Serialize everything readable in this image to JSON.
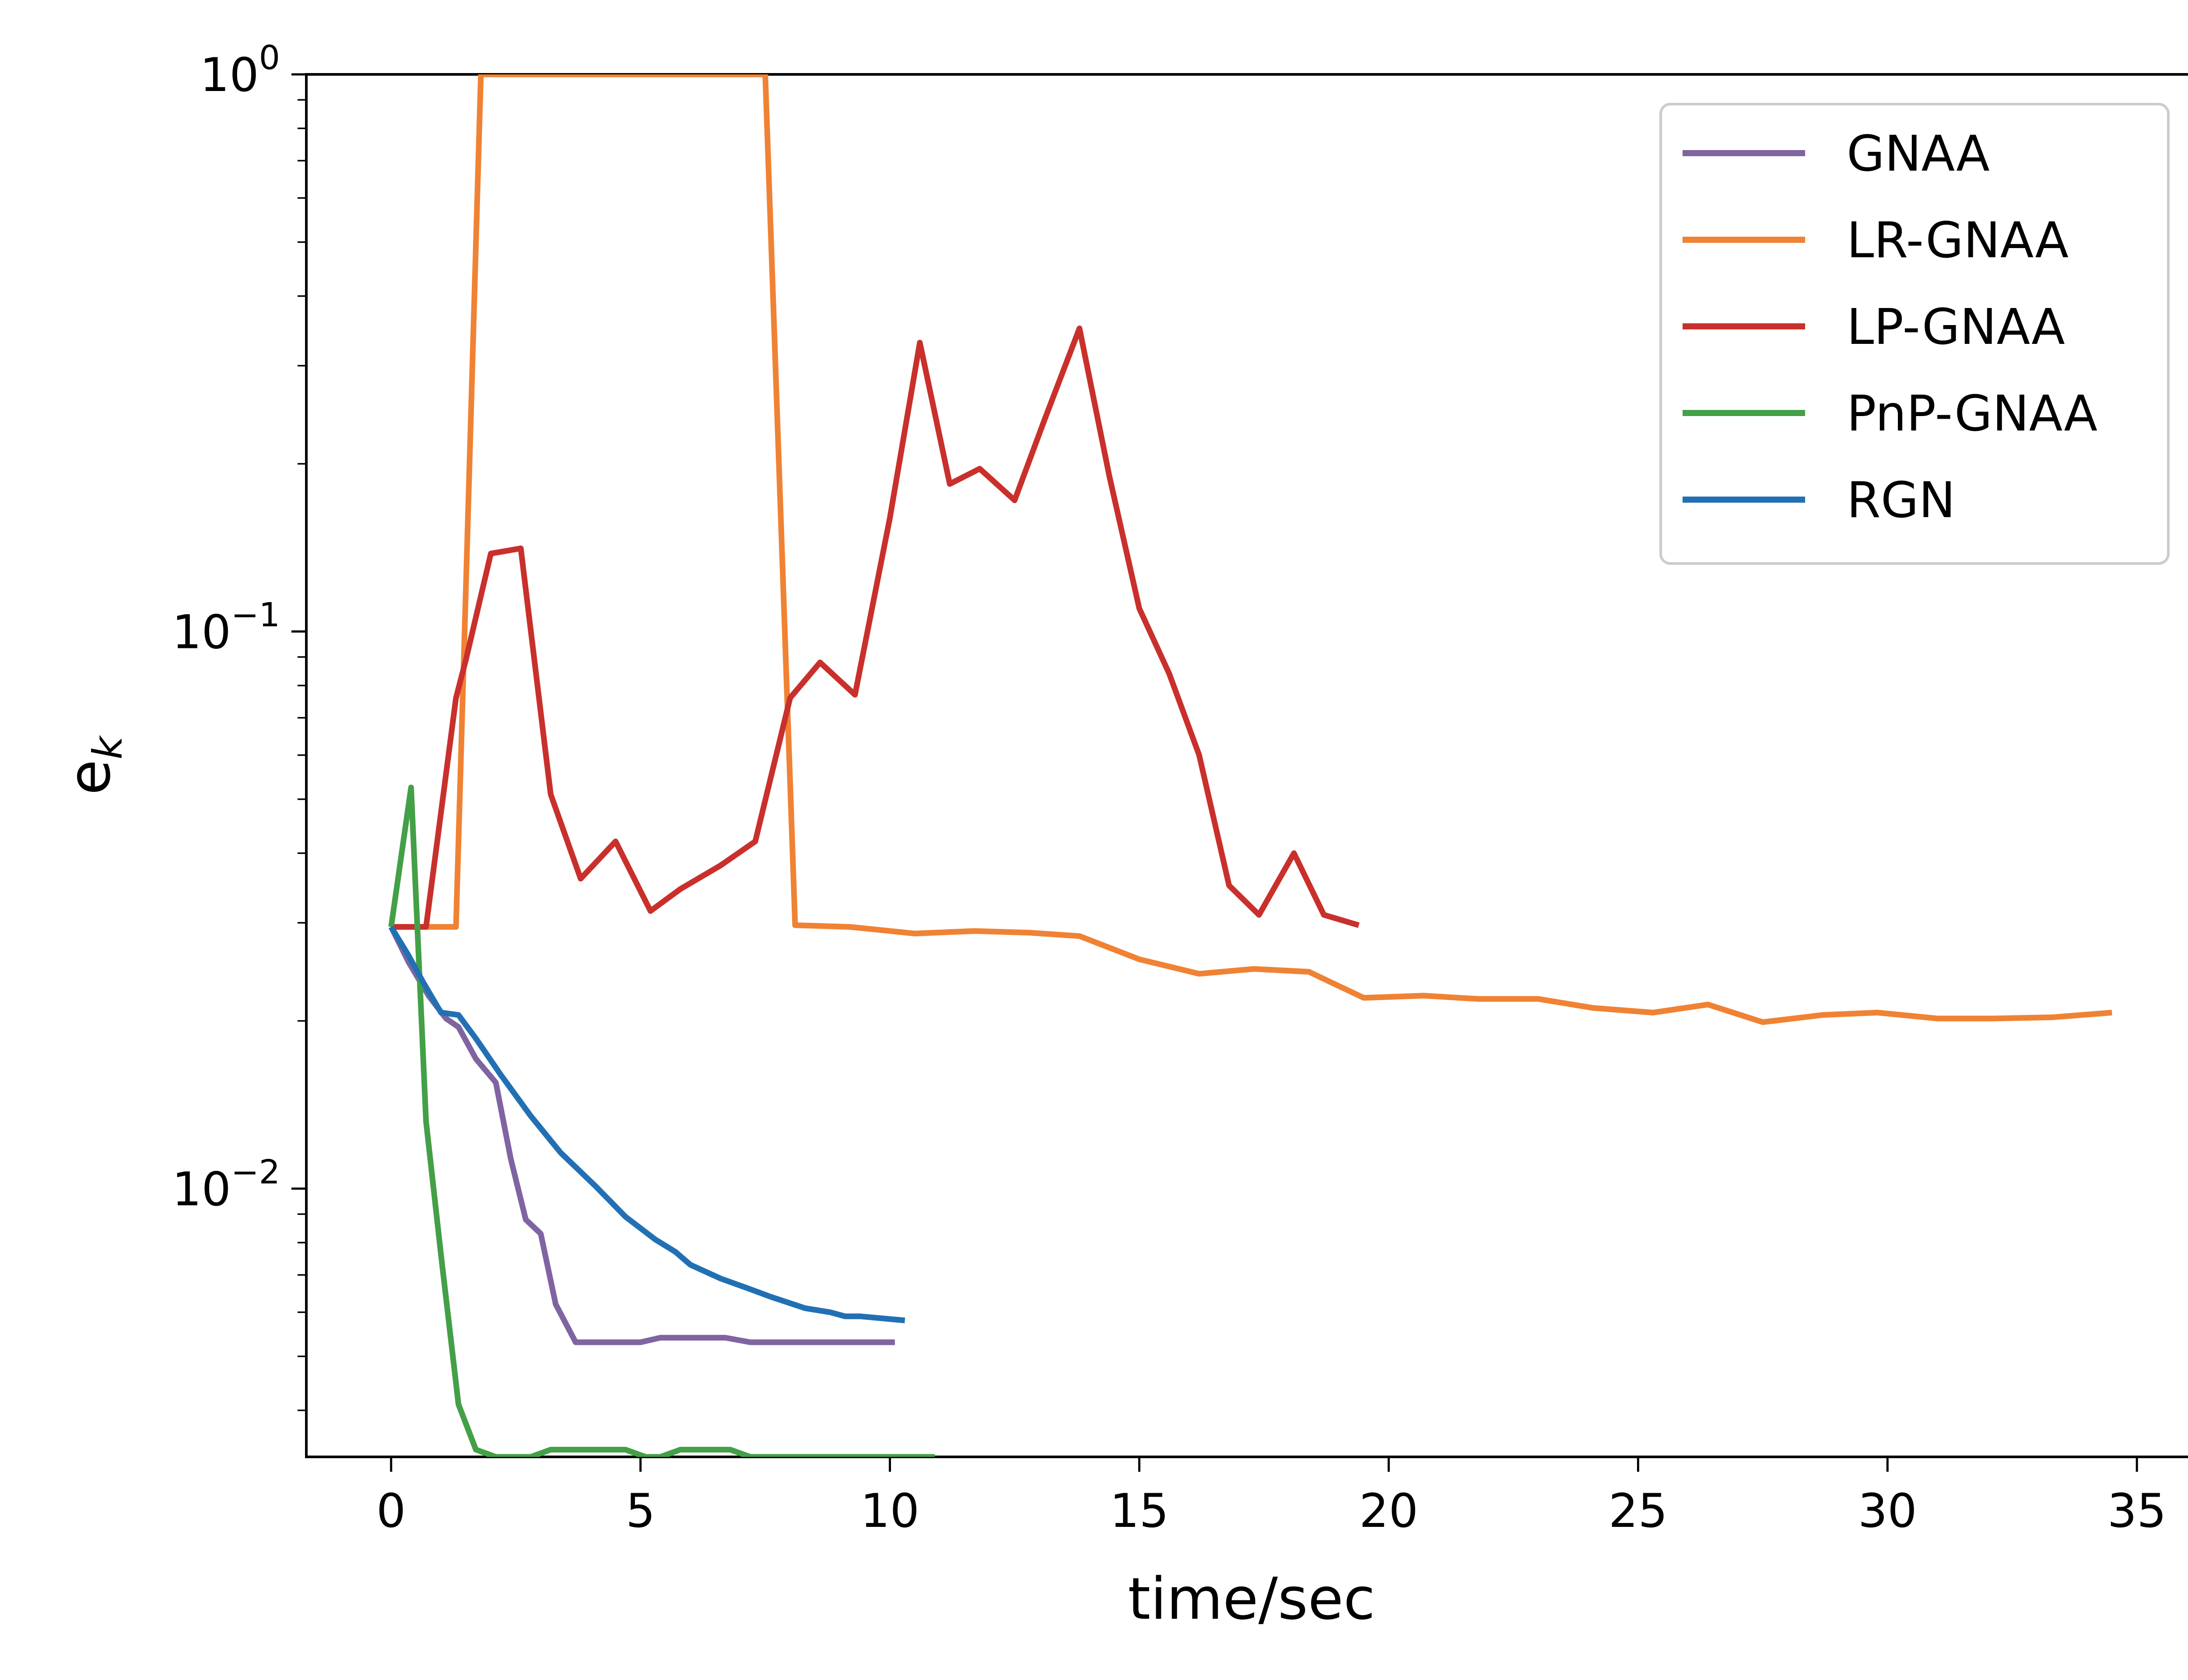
{
  "chart_data": {
    "type": "line",
    "title": "",
    "xlabel": "time/sec",
    "ylabel": "e_k",
    "ylabel_main": "e",
    "ylabel_sub": "k",
    "xlim": [
      -1.7,
      36.2
    ],
    "ylim": [
      0.0033,
      1.0
    ],
    "yscale": "log",
    "legend_position": "top-right",
    "x_ticks": [
      0,
      5,
      10,
      15,
      20,
      25,
      30,
      35
    ],
    "x_tick_labels": [
      "0",
      "5",
      "10",
      "15",
      "20",
      "25",
      "30",
      "35"
    ],
    "y_ticks": [
      {
        "value": 0.01,
        "base": "10",
        "exp": "−2"
      },
      {
        "value": 0.1,
        "base": "10",
        "exp": "−1"
      },
      {
        "value": 1.0,
        "base": "10",
        "exp": "0"
      }
    ],
    "series": [
      {
        "name": "GNAA",
        "color": "#8064a2",
        "x": [
          0,
          0.35,
          0.75,
          1.1,
          1.35,
          1.7,
          2.1,
          2.4,
          2.7,
          3.0,
          3.3,
          3.7,
          4.3,
          5.0,
          5.4,
          6.0,
          6.7,
          7.2,
          7.8,
          8.5,
          9.2,
          10.1
        ],
        "y": [
          0.0295,
          0.0255,
          0.0222,
          0.0202,
          0.0195,
          0.0171,
          0.0155,
          0.0113,
          0.0088,
          0.0083,
          0.0062,
          0.0053,
          0.0053,
          0.0053,
          0.0054,
          0.0054,
          0.0054,
          0.0053,
          0.0053,
          0.0053,
          0.0053,
          0.0053
        ]
      },
      {
        "name": "LR-GNAA",
        "color": "#f08234",
        "x": [
          0,
          0.5,
          0.9,
          1.3,
          1.8,
          7.5,
          8.1,
          9.2,
          10.5,
          11.7,
          12.8,
          13.8,
          15.0,
          16.2,
          17.3,
          18.4,
          19.5,
          20.7,
          21.8,
          23.0,
          24.1,
          25.3,
          26.4,
          27.5,
          28.7,
          29.8,
          31.0,
          32.1,
          33.3,
          34.5
        ],
        "y": [
          0.0295,
          0.0295,
          0.0295,
          0.0295,
          1.0,
          1.0,
          0.0297,
          0.0295,
          0.0287,
          0.029,
          0.0288,
          0.0284,
          0.0258,
          0.0243,
          0.0248,
          0.0245,
          0.022,
          0.0222,
          0.0219,
          0.0219,
          0.0211,
          0.0207,
          0.0214,
          0.0199,
          0.0205,
          0.0207,
          0.0202,
          0.0202,
          0.0203,
          0.0207
        ]
      },
      {
        "name": "LP-GNAA",
        "color": "#c9302c",
        "x": [
          0,
          0.7,
          1.3,
          1.5,
          2.0,
          2.6,
          3.2,
          3.8,
          4.5,
          5.2,
          5.8,
          6.6,
          7.3,
          8.0,
          8.6,
          9.3,
          10.0,
          10.6,
          11.2,
          11.8,
          12.5,
          13.1,
          13.8,
          14.4,
          15.0,
          15.6,
          16.2,
          16.8,
          17.4,
          18.1,
          18.7,
          19.4
        ],
        "y": [
          0.0295,
          0.0295,
          0.076,
          0.089,
          0.138,
          0.141,
          0.051,
          0.036,
          0.042,
          0.0315,
          0.0345,
          0.038,
          0.042,
          0.076,
          0.088,
          0.077,
          0.16,
          0.33,
          0.184,
          0.196,
          0.172,
          0.24,
          0.35,
          0.19,
          0.11,
          0.084,
          0.06,
          0.035,
          0.031,
          0.04,
          0.031,
          0.0297
        ]
      },
      {
        "name": "PnP-GNAA",
        "color": "#43a047",
        "x": [
          0,
          0.4,
          0.7,
          1.0,
          1.35,
          1.7,
          2.1,
          2.8,
          3.2,
          4.0,
          4.7,
          5.1,
          5.4,
          5.8,
          6.5,
          6.8,
          7.2,
          8.0,
          9.0,
          10.0,
          10.9
        ],
        "y": [
          0.0295,
          0.0525,
          0.0132,
          0.0076,
          0.0041,
          0.0034,
          0.0033,
          0.0033,
          0.0034,
          0.0034,
          0.0034,
          0.0033,
          0.0033,
          0.0034,
          0.0034,
          0.0034,
          0.0033,
          0.0033,
          0.0033,
          0.0033,
          0.0033
        ]
      },
      {
        "name": "RGN",
        "color": "#2270b4",
        "x": [
          0,
          0.35,
          0.65,
          1.0,
          1.35,
          1.7,
          2.2,
          2.8,
          3.4,
          4.1,
          4.7,
          5.3,
          5.7,
          6.0,
          6.6,
          7.2,
          7.6,
          8.3,
          8.8,
          9.1,
          9.4,
          10.3
        ],
        "y": [
          0.0295,
          0.0262,
          0.0234,
          0.0207,
          0.0205,
          0.0186,
          0.016,
          0.0135,
          0.0116,
          0.0101,
          0.0089,
          0.0081,
          0.0077,
          0.0073,
          0.0069,
          0.0066,
          0.0064,
          0.0061,
          0.006,
          0.0059,
          0.0059,
          0.0058
        ]
      }
    ]
  }
}
